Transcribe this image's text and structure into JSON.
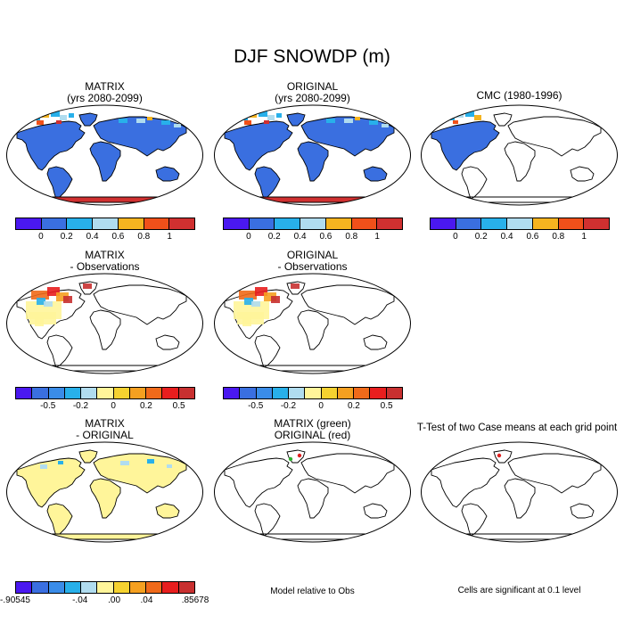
{
  "title": "DJF SNOWDP (m)",
  "colors": {
    "snow_scale": [
      "#4a18f0",
      "#3a6fe0",
      "#28b0ea",
      "#b0dcef",
      "#f5b420",
      "#f0501a",
      "#d03030"
    ],
    "diff_scale": [
      "#4a18f0",
      "#3a6fe0",
      "#3a8ce8",
      "#28b0ea",
      "#b0dcef",
      "#fff59a",
      "#f5d230",
      "#f5a020",
      "#f06a1a",
      "#e81e1e",
      "#c83030"
    ],
    "land_fill": "#3a6fe0",
    "antarctica": "#d03030",
    "pale_yellow": "#fff59a",
    "sig_green": "#2fb030",
    "sig_red": "#e02020"
  },
  "panels": [
    {
      "id": "p1",
      "title": [
        "MATRIX",
        "(yrs 2080-2099)"
      ],
      "kind": "field-global"
    },
    {
      "id": "p2",
      "title": [
        "ORIGINAL",
        "(yrs 2080-2099)"
      ],
      "kind": "field-global"
    },
    {
      "id": "p3",
      "title": [
        "CMC (1980-1996)"
      ],
      "kind": "field-na"
    },
    {
      "id": "p4",
      "title": [
        "MATRIX",
        "- Observations"
      ],
      "kind": "diff-na"
    },
    {
      "id": "p5",
      "title": [
        "ORIGINAL",
        "- Observations"
      ],
      "kind": "diff-na"
    },
    {
      "id": "p6",
      "title": [
        "MATRIX",
        "- ORIGINAL"
      ],
      "kind": "diff-global"
    },
    {
      "id": "p7",
      "title": [
        "MATRIX (green)",
        "ORIGINAL (red)"
      ],
      "kind": "sig-green"
    },
    {
      "id": "p8",
      "title": [
        "T-Test of two Case means at each grid point"
      ],
      "kind": "sig-red"
    }
  ],
  "colorbars": {
    "snow": {
      "labels": [
        "0",
        "0.2",
        "0.4",
        "0.6",
        "0.8",
        "1"
      ]
    },
    "diff": {
      "labels": [
        "-0.5",
        "-0.2",
        "0",
        "0.2",
        "0.5"
      ]
    },
    "matrix_original": {
      "labels": [
        ".90545",
        "-.04",
        ".00",
        ".04",
        ".85678"
      ],
      "prefix_first": "-"
    }
  },
  "notes": {
    "model_relative": "Model relative to Obs",
    "cells_significant": "Cells are significant at 0.1 level"
  },
  "chart_data": {
    "type": "heatmap",
    "title": "DJF SNOWDP (m)",
    "variable": "DJF snow depth",
    "units": "m",
    "snow_levels": [
      0,
      0.2,
      0.4,
      0.6,
      0.8,
      1
    ],
    "difference_levels": [
      -0.5,
      -0.2,
      0,
      0.2,
      0.5
    ],
    "matrix_minus_original_levels": [
      -0.90545,
      -0.04,
      0.0,
      0.04,
      0.85678
    ],
    "panels": [
      "MATRIX (yrs 2080-2099)",
      "ORIGINAL (yrs 2080-2099)",
      "CMC (1980-1996)",
      "MATRIX - Observations",
      "ORIGINAL - Observations",
      "MATRIX - ORIGINAL",
      "MATRIX (green) ORIGINAL (red)",
      "T-Test of two Case means at each grid point"
    ],
    "significance_level": 0.1
  }
}
